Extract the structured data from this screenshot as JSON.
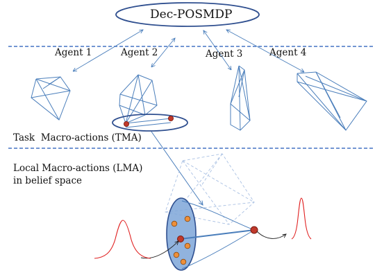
{
  "title": "Dec-POSMDP",
  "agents": [
    {
      "label": "Agent 1"
    },
    {
      "label": "Agent 2"
    },
    {
      "label": "Agent 3"
    },
    {
      "label": "Agent 4"
    }
  ],
  "sections": {
    "tma": "Task  Macro-actions (TMA)",
    "lma_line1": "Local Macro-actions (LMA)",
    "lma_line2": "in belief space"
  },
  "colors": {
    "line_blue": "#4a7ebb",
    "dashed_blue": "#4472c4",
    "ellipse_fill": "#7ea6d8",
    "node_red": "#c0392b",
    "node_orange": "#ed8f3a",
    "curve_red": "#e02020"
  }
}
